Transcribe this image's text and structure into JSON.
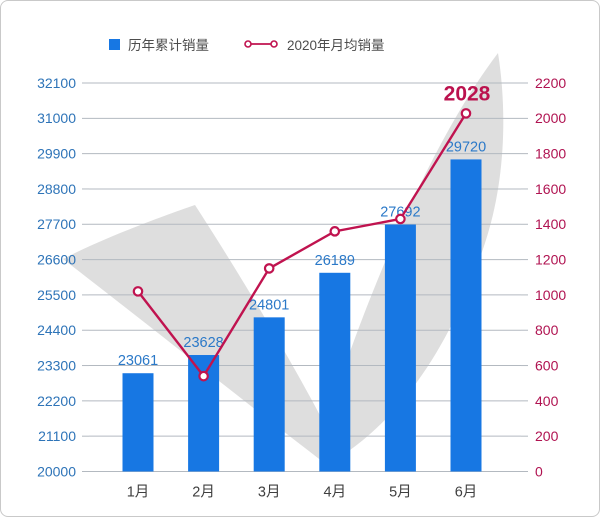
{
  "legend": {
    "bar_label": "历年累计销量",
    "line_label": "2020年月均销量"
  },
  "chart_data": {
    "type": "combo-bar-line",
    "title": "",
    "categories": [
      "1月",
      "2月",
      "3月",
      "4月",
      "5月",
      "6月"
    ],
    "series": [
      {
        "name": "历年累计销量",
        "type": "bar",
        "axis": "left",
        "values": [
          23061,
          23628,
          24801,
          26189,
          27692,
          29720
        ],
        "data_labels": [
          "23061",
          "23628",
          "24801",
          "26189",
          "27692",
          "29720"
        ],
        "color": "#1777e3",
        "label_color": "#2b79c8"
      },
      {
        "name": "2020年月均销量",
        "type": "line",
        "axis": "right",
        "values": [
          1020,
          540,
          1150,
          1360,
          1430,
          2028
        ],
        "point_labels": [
          "",
          "",
          "",
          "",
          "",
          "2028"
        ],
        "color": "#c0134f",
        "marker": "open-circle"
      }
    ],
    "left_axis": {
      "min": 20000,
      "max": 32100,
      "step": 1100,
      "ticks": [
        20000,
        21100,
        22200,
        23300,
        24400,
        25500,
        26600,
        27700,
        28800,
        29900,
        31000,
        32100
      ],
      "color": "#2e74b8"
    },
    "right_axis": {
      "min": 0,
      "max": 2200,
      "step": 200,
      "ticks": [
        0,
        200,
        400,
        600,
        800,
        1000,
        1200,
        1400,
        1600,
        1800,
        2000,
        2200
      ],
      "color": "#b01351"
    },
    "x_axis": {
      "color": "#3f3f3f"
    },
    "grid": true,
    "grid_color": "#b3b9c0",
    "watermark_color": "#dedede",
    "highlight_label": {
      "text": "2028",
      "color": "#bb124e"
    },
    "legend_position": "top-left"
  }
}
